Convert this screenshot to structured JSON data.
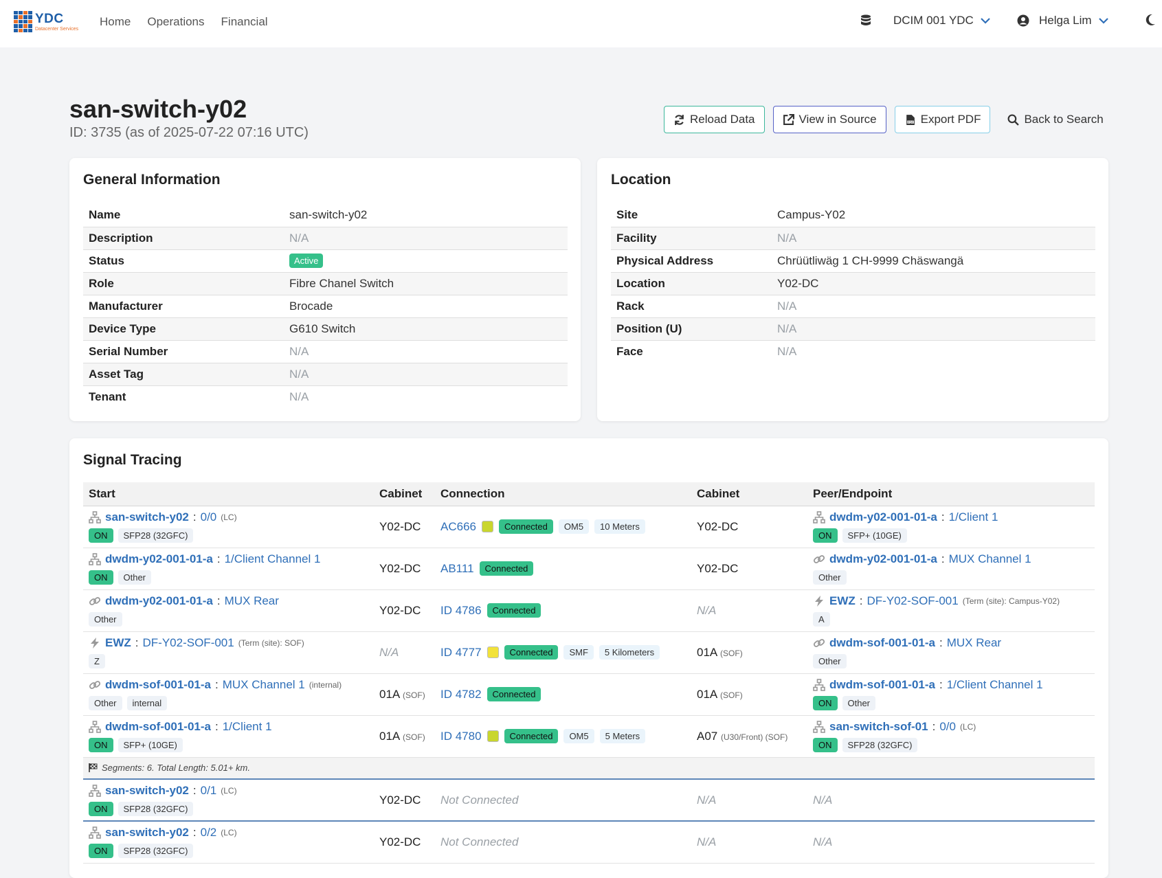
{
  "nav": {
    "brand": "YDC",
    "brand_sub": "Datacenter Services",
    "links": [
      "Home",
      "Operations",
      "Financial"
    ],
    "datacenter": "DCIM 001 YDC",
    "user": "Helga Lim"
  },
  "header": {
    "title": "san-switch-y02",
    "subtitle": "ID: 3735 (as of 2025-07-22 07:16 UTC)",
    "reload": "Reload Data",
    "view_source": "View in Source",
    "export_pdf": "Export PDF",
    "back": "Back to Search"
  },
  "general": {
    "title": "General Information",
    "rows": [
      {
        "k": "Name",
        "v": "san-switch-y02"
      },
      {
        "k": "Description",
        "v": "N/A"
      },
      {
        "k": "Status",
        "v": "Active"
      },
      {
        "k": "Role",
        "v": "Fibre Chanel Switch"
      },
      {
        "k": "Manufacturer",
        "v": "Brocade"
      },
      {
        "k": "Device Type",
        "v": "G610 Switch"
      },
      {
        "k": "Serial Number",
        "v": "N/A"
      },
      {
        "k": "Asset Tag",
        "v": "N/A"
      },
      {
        "k": "Tenant",
        "v": "N/A"
      }
    ]
  },
  "location": {
    "title": "Location",
    "rows": [
      {
        "k": "Site",
        "v": "Campus-Y02"
      },
      {
        "k": "Facility",
        "v": "N/A"
      },
      {
        "k": "Physical Address",
        "v": "Chrüütliwäg 1 CH-9999 Chäswangä"
      },
      {
        "k": "Location",
        "v": "Y02-DC"
      },
      {
        "k": "Rack",
        "v": "N/A"
      },
      {
        "k": "Position (U)",
        "v": "N/A"
      },
      {
        "k": "Face",
        "v": "N/A"
      }
    ]
  },
  "tracing": {
    "title": "Signal Tracing",
    "headers": [
      "Start",
      "Cabinet",
      "Connection",
      "Cabinet",
      "Peer/Endpoint"
    ],
    "rows": [
      {
        "start": {
          "icon": "network-icon",
          "dev": "san-switch-y02",
          "port": "0/0",
          "note": "(LC)",
          "tags": [
            "ON",
            "SFP28 (32GFC)"
          ]
        },
        "cab1": "Y02-DC",
        "cab1_note": "",
        "conn": {
          "id": "AC666",
          "swatch": "#c9d62e",
          "status": "Connected",
          "tags": [
            "OM5",
            "10 Meters"
          ]
        },
        "cab2": "Y02-DC",
        "cab2_note": "",
        "peer": {
          "icon": "network-icon",
          "dev": "dwdm-y02-001-01-a",
          "port": "1/Client 1",
          "note": "",
          "tags": [
            "ON",
            "SFP+ (10GE)"
          ]
        }
      },
      {
        "start": {
          "icon": "network-icon",
          "dev": "dwdm-y02-001-01-a",
          "port": "1/Client Channel 1",
          "note": "",
          "tags": [
            "ON",
            "Other"
          ]
        },
        "cab1": "Y02-DC",
        "cab1_note": "",
        "conn": {
          "id": "AB111",
          "swatch": "",
          "status": "Connected",
          "tags": []
        },
        "cab2": "Y02-DC",
        "cab2_note": "",
        "peer": {
          "icon": "link-icon",
          "dev": "dwdm-y02-001-01-a",
          "port": "MUX Channel 1",
          "note": "",
          "tags": [
            "Other"
          ]
        }
      },
      {
        "start": {
          "icon": "link-icon",
          "dev": "dwdm-y02-001-01-a",
          "port": "MUX Rear",
          "note": "",
          "tags": [
            "Other"
          ]
        },
        "cab1": "Y02-DC",
        "cab1_note": "",
        "conn": {
          "id": "ID 4786",
          "swatch": "",
          "status": "Connected",
          "tags": []
        },
        "cab2": "N/A",
        "cab2_note": "",
        "peer": {
          "icon": "bolt-icon",
          "dev": "EWZ",
          "port": "DF-Y02-SOF-001",
          "note": "(Term (site): Campus-Y02)",
          "tags": [
            "A"
          ]
        }
      },
      {
        "start": {
          "icon": "bolt-icon",
          "dev": "EWZ",
          "port": "DF-Y02-SOF-001",
          "note": "(Term (site): SOF)",
          "tags": [
            "Z"
          ]
        },
        "cab1": "N/A",
        "cab1_note": "",
        "conn": {
          "id": "ID 4777",
          "swatch": "#f2e23a",
          "status": "Connected",
          "tags": [
            "SMF",
            "5 Kilometers"
          ]
        },
        "cab2": "01A",
        "cab2_note": "(SOF)",
        "peer": {
          "icon": "link-icon",
          "dev": "dwdm-sof-001-01-a",
          "port": "MUX Rear",
          "note": "",
          "tags": [
            "Other"
          ]
        }
      },
      {
        "start": {
          "icon": "link-icon",
          "dev": "dwdm-sof-001-01-a",
          "port": "MUX Channel 1",
          "note": "(internal)",
          "tags": [
            "Other",
            "internal"
          ]
        },
        "cab1": "01A",
        "cab1_note": "(SOF)",
        "conn": {
          "id": "ID 4782",
          "swatch": "",
          "status": "Connected",
          "tags": []
        },
        "cab2": "01A",
        "cab2_note": "(SOF)",
        "peer": {
          "icon": "network-icon",
          "dev": "dwdm-sof-001-01-a",
          "port": "1/Client Channel 1",
          "note": "",
          "tags": [
            "ON",
            "Other"
          ]
        }
      },
      {
        "start": {
          "icon": "network-icon",
          "dev": "dwdm-sof-001-01-a",
          "port": "1/Client 1",
          "note": "",
          "tags": [
            "ON",
            "SFP+ (10GE)"
          ]
        },
        "cab1": "01A",
        "cab1_note": "(SOF)",
        "conn": {
          "id": "ID 4780",
          "swatch": "#c9d62e",
          "status": "Connected",
          "tags": [
            "OM5",
            "5 Meters"
          ]
        },
        "cab2": "A07",
        "cab2_note": "(U30/Front) (SOF)",
        "peer": {
          "icon": "network-icon",
          "dev": "san-switch-sof-01",
          "port": "0/0",
          "note": "(LC)",
          "tags": [
            "ON",
            "SFP28 (32GFC)"
          ]
        }
      }
    ],
    "summary": "Segments: 6. Total Length: 5.01+ km.",
    "extra_rows": [
      {
        "start": {
          "icon": "network-icon",
          "dev": "san-switch-y02",
          "port": "0/1",
          "note": "(LC)",
          "tags": [
            "ON",
            "SFP28 (32GFC)"
          ]
        },
        "cab1": "Y02-DC",
        "conn": "Not Connected",
        "cab2": "N/A",
        "peer": "N/A"
      },
      {
        "start": {
          "icon": "network-icon",
          "dev": "san-switch-y02",
          "port": "0/2",
          "note": "(LC)",
          "tags": [
            "ON",
            "SFP28 (32GFC)"
          ]
        },
        "cab1": "Y02-DC",
        "conn": "Not Connected",
        "cab2": "N/A",
        "peer": "N/A"
      }
    ]
  }
}
